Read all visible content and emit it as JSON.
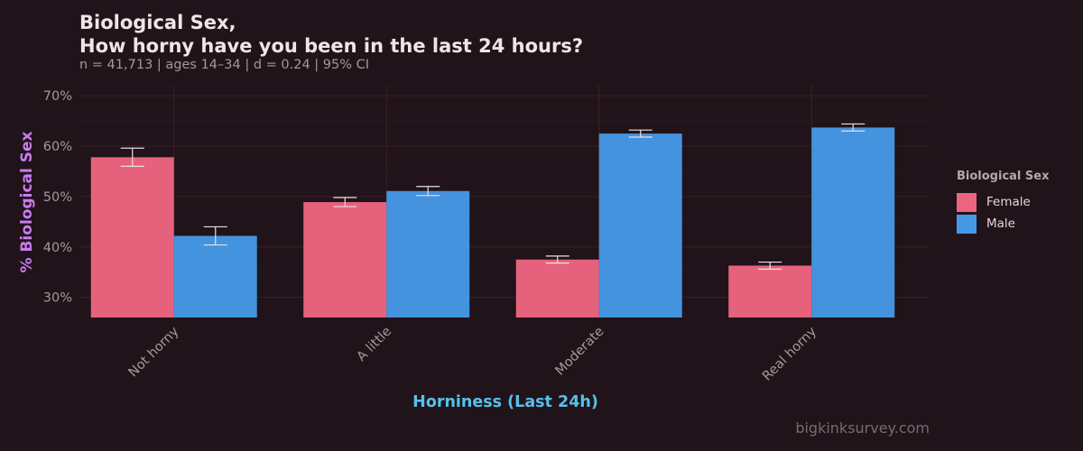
{
  "title_line1": "Biological Sex,",
  "title_line2": "How horny have you been in the last 24 hours?",
  "subtitle": "n = 41,713  |  ages 14–34  |  d = 0.24  |  95% CI",
  "caption": "bigkinksurvey.com",
  "colors": {
    "background": "#21131a",
    "female": "#ec6580",
    "male": "#4598e6",
    "grid": "#3d1f28"
  },
  "chart_data": {
    "type": "bar",
    "xlabel": "Horniness (Last 24h)",
    "ylabel": "%  Biological Sex",
    "categories": [
      "Not horny",
      "A little",
      "Moderate",
      "Real horny"
    ],
    "y_ticks": [
      "30%",
      "40%",
      "50%",
      "60%",
      "70%"
    ],
    "ylim": [
      26,
      72
    ],
    "grid": true,
    "legend": {
      "title": "Biological Sex",
      "position": "right"
    },
    "series": [
      {
        "name": "Female",
        "values": [
          57.8,
          48.9,
          37.5,
          36.3
        ],
        "ci_low": [
          56.0,
          48.0,
          36.8,
          35.6
        ],
        "ci_high": [
          59.6,
          49.8,
          38.2,
          37.0
        ]
      },
      {
        "name": "Male",
        "values": [
          42.2,
          51.1,
          62.5,
          63.7
        ],
        "ci_low": [
          40.4,
          50.2,
          61.8,
          63.0
        ],
        "ci_high": [
          44.0,
          52.0,
          63.2,
          64.4
        ]
      }
    ]
  }
}
